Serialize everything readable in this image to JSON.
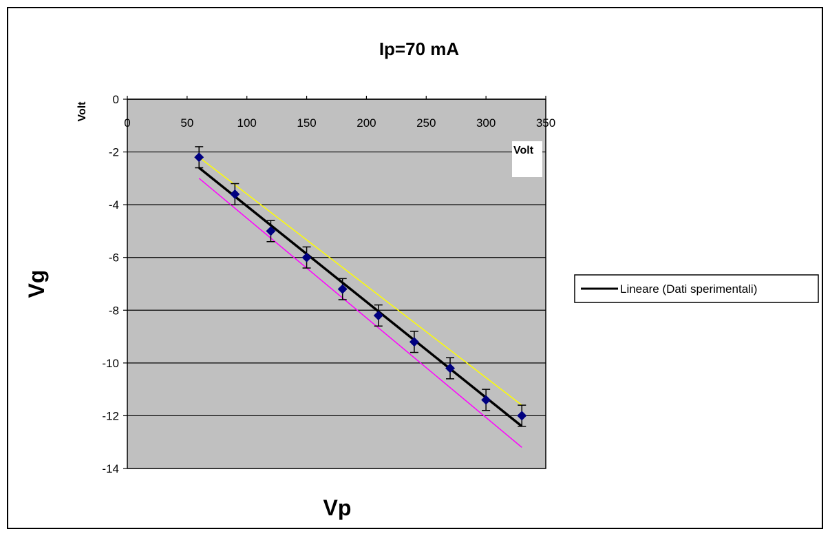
{
  "chart_data": {
    "type": "scatter",
    "title": "Ip=70 mA",
    "xlabel": "Vp",
    "ylabel": "Vg",
    "x_unit": "Volt",
    "y_unit": "Volt",
    "xlim": [
      0,
      350
    ],
    "ylim": [
      -14,
      0
    ],
    "x_ticks": [
      "0",
      "50",
      "100",
      "150",
      "200",
      "250",
      "300",
      "350"
    ],
    "y_ticks": [
      "0",
      "-2",
      "-4",
      "-6",
      "-8",
      "-10",
      "-12",
      "-14"
    ],
    "grid": "horizontal",
    "background_color": "#c0c0c0",
    "points": {
      "x": [
        60,
        90,
        120,
        150,
        180,
        210,
        240,
        270,
        300,
        330
      ],
      "y": [
        -2.2,
        -3.6,
        -5.0,
        -6.0,
        -7.2,
        -8.2,
        -9.2,
        -10.2,
        -11.4,
        -12.0
      ],
      "error": 0.4,
      "color": "#000080"
    },
    "lines": [
      {
        "name": "Lineare (Dati sperimentali)",
        "color": "#000000",
        "x": [
          60,
          330
        ],
        "y": [
          -2.6,
          -12.4
        ]
      },
      {
        "color": "#ffff00",
        "x": [
          60,
          330
        ],
        "y": [
          -2.2,
          -11.6
        ]
      },
      {
        "color": "#ff00ff",
        "x": [
          60,
          330
        ],
        "y": [
          -3.0,
          -13.2
        ]
      }
    ],
    "legend": {
      "position": "right",
      "entries": [
        "Lineare (Dati sperimentali)"
      ]
    }
  }
}
